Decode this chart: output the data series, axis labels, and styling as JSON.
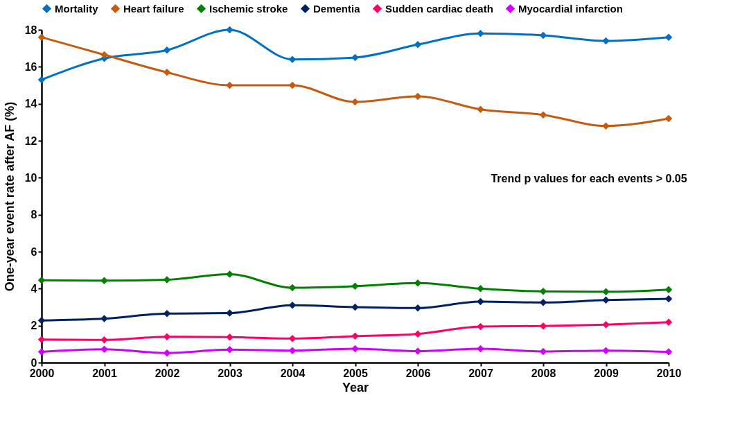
{
  "chart_data": {
    "type": "line",
    "xlabel": "Year",
    "ylabel": "One-year event rate after AF (%)",
    "x": [
      2000,
      2001,
      2002,
      2003,
      2004,
      2005,
      2006,
      2007,
      2008,
      2009,
      2010
    ],
    "xlim": [
      2000,
      2010
    ],
    "xticks": [
      2000,
      2001,
      2002,
      2003,
      2004,
      2005,
      2006,
      2007,
      2008,
      2009,
      2010
    ],
    "ylim": [
      0,
      18
    ],
    "yticks": [
      0,
      2,
      4,
      6,
      8,
      10,
      12,
      14,
      16,
      18
    ],
    "grid": false,
    "legend": "top",
    "marker": "diamond",
    "line_style": "solid",
    "annotations": [
      "Trend p values for each events > 0.05"
    ],
    "series": [
      {
        "name": "Mortality",
        "color": "#0070c0",
        "values": [
          15.3,
          16.45,
          16.9,
          18.0,
          16.4,
          16.5,
          17.2,
          17.8,
          17.7,
          17.4,
          17.6
        ]
      },
      {
        "name": "Heart failure",
        "color": "#c55a11",
        "values": [
          17.6,
          16.65,
          15.7,
          15.0,
          15.0,
          14.1,
          14.4,
          13.7,
          13.4,
          12.8,
          13.2
        ]
      },
      {
        "name": "Ischemic stroke",
        "color": "#008000",
        "values": [
          4.45,
          4.43,
          4.48,
          4.78,
          4.05,
          4.13,
          4.3,
          4.0,
          3.85,
          3.83,
          3.95
        ]
      },
      {
        "name": "Dementia",
        "color": "#002060",
        "values": [
          2.28,
          2.38,
          2.65,
          2.68,
          3.1,
          3.0,
          2.95,
          3.3,
          3.25,
          3.38,
          3.45
        ]
      },
      {
        "name": "Sudden cardiac death",
        "color": "#ff0066",
        "values": [
          1.25,
          1.23,
          1.4,
          1.38,
          1.3,
          1.43,
          1.55,
          1.95,
          1.98,
          2.05,
          2.18
        ]
      },
      {
        "name": "Myocardial infarction",
        "color": "#cc00ff",
        "values": [
          0.58,
          0.72,
          0.52,
          0.7,
          0.65,
          0.75,
          0.62,
          0.75,
          0.6,
          0.65,
          0.58
        ]
      }
    ]
  }
}
